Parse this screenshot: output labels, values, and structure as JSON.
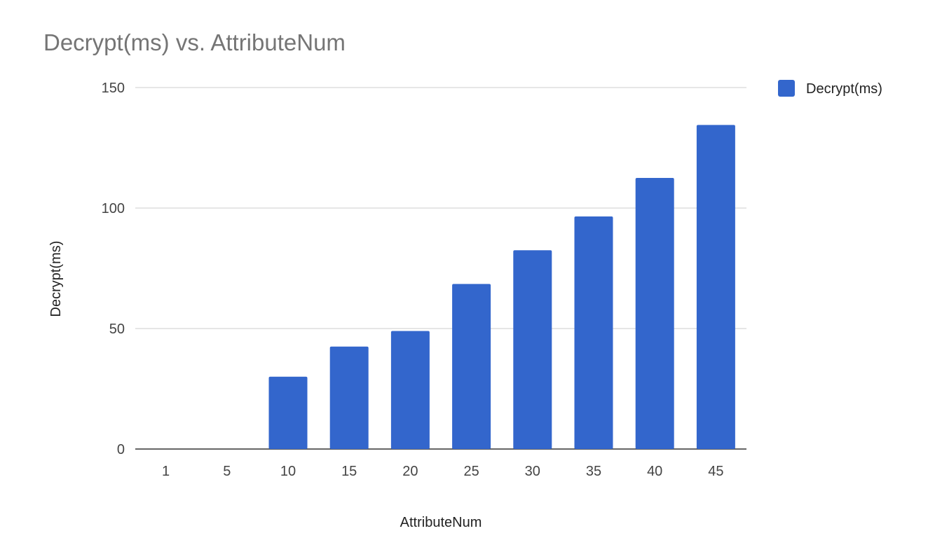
{
  "chart_data": {
    "type": "bar",
    "title": "Decrypt(ms) vs. AttributeNum",
    "xlabel": "AttributeNum",
    "ylabel": "Decrypt(ms)",
    "categories": [
      "1",
      "5",
      "10",
      "15",
      "20",
      "25",
      "30",
      "35",
      "40",
      "45"
    ],
    "series": [
      {
        "name": "Decrypt(ms)",
        "color": "#3366cc",
        "values": [
          0,
          0,
          30,
          42.5,
          49,
          68.5,
          82.5,
          96.5,
          112.5,
          134.5
        ]
      }
    ],
    "ylim": [
      0,
      150
    ],
    "yticks": [
      "0",
      "50",
      "100",
      "150"
    ],
    "grid": true,
    "legend_position": "right"
  }
}
